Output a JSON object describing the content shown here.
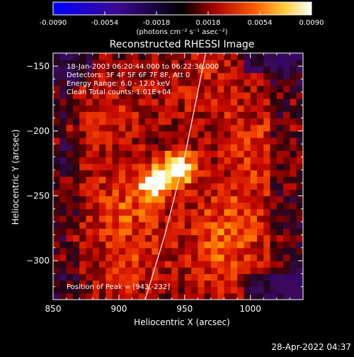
{
  "chart_data": {
    "type": "heatmap",
    "title": "Reconstructed RHESSI Image",
    "xlabel": "Heliocentric X (arcsec)",
    "ylabel": "Heliocentric Y (arcsec)",
    "xlim": [
      850,
      1040
    ],
    "ylim": [
      -330,
      -140
    ],
    "x_ticks": [
      850,
      900,
      950,
      1000
    ],
    "y_ticks": [
      -150,
      -200,
      -250,
      -300
    ],
    "colorbar": {
      "range": [
        -0.009,
        0.009
      ],
      "ticks": [
        "-0.0090",
        "-0.0054",
        "-0.0018",
        "0.0018",
        "0.0054",
        "0.0090"
      ],
      "unit_label": "(photons cm⁻² s⁻¹ asec⁻²)",
      "colors": [
        "#0000ff",
        "#4b0082",
        "#000000",
        "#aa0000",
        "#ff6a00",
        "#ffff80",
        "#ffffff"
      ]
    },
    "annotations": [
      "18-Jan-2003 06:20:44.000 to 06:22:36.000",
      "Detectors: 3F 4F 5F 6F 7F 8F, Att 0",
      "Energy Range: 6.0 - 12.0 keV",
      "Clean     Total counts: 1.01E+04",
      "Position of Peak = [943,-232]"
    ],
    "peak": {
      "x": 943,
      "y": -232
    },
    "sources": [
      {
        "x": 943,
        "y": -231,
        "level": 1.0
      },
      {
        "x": 925,
        "y": -242,
        "level": 0.85
      },
      {
        "x": 900,
        "y": -260,
        "level": 0.45
      },
      {
        "x": 985,
        "y": -270,
        "level": 0.4
      },
      {
        "x": 1005,
        "y": -215,
        "level": 0.35
      },
      {
        "x": 965,
        "y": -170,
        "level": 0.3
      },
      {
        "x": 890,
        "y": -190,
        "level": 0.3
      },
      {
        "x": 975,
        "y": -300,
        "level": 0.35
      },
      {
        "x": 905,
        "y": -305,
        "level": 0.3
      }
    ],
    "limb_curve": [
      [
        920,
        -330
      ],
      [
        935,
        -280
      ],
      [
        950,
        -220
      ],
      [
        961,
        -165
      ],
      [
        966,
        -140
      ]
    ]
  },
  "timestamp": "28-Apr-2022 04:37"
}
